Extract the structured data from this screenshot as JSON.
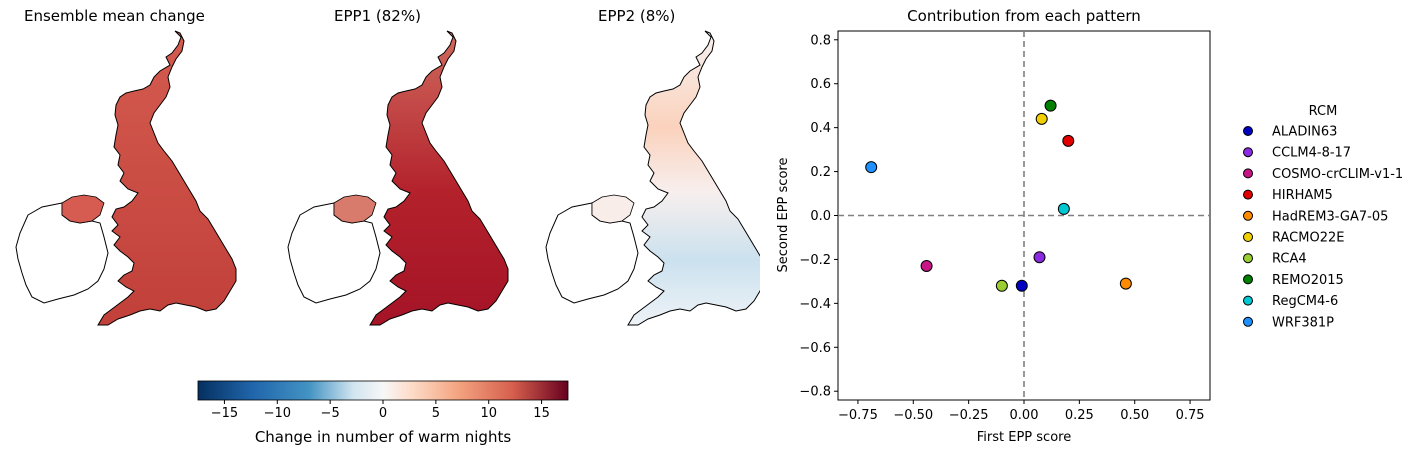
{
  "maps": {
    "panels": [
      {
        "title": "Ensemble mean change"
      },
      {
        "title": "EPP1 (82%)"
      },
      {
        "title": "EPP2 (8%)"
      }
    ],
    "colorbar": {
      "label": "Change in number of warm nights",
      "range": [
        -17.5,
        17.5
      ],
      "ticks": [
        -15,
        -10,
        -5,
        0,
        5,
        10,
        15
      ],
      "tick_labels": [
        "−15",
        "−10",
        "−5",
        "0",
        "5",
        "10",
        "15"
      ],
      "colormap": "RdBu_r"
    }
  },
  "chart_data": {
    "type": "scatter",
    "title": "Contribution from each pattern",
    "xlabel": "First EPP score",
    "ylabel": "Second EPP score",
    "xlim": [
      -0.84,
      0.84
    ],
    "ylim": [
      -0.84,
      0.84
    ],
    "x_ticks": [
      -0.75,
      -0.5,
      -0.25,
      0,
      0.25,
      0.5,
      0.75
    ],
    "x_tick_labels": [
      "−0.75",
      "−0.50",
      "−0.25",
      "0.00",
      "0.25",
      "0.50",
      "0.75"
    ],
    "y_ticks": [
      0.8,
      0.6,
      0.4,
      0.2,
      0,
      -0.2,
      -0.4,
      -0.6,
      -0.8
    ],
    "y_tick_labels": [
      "0.8",
      "0.6",
      "0.4",
      "0.2",
      "0.0",
      "−0.2",
      "−0.4",
      "−0.6",
      "−0.8"
    ],
    "reference_lines": {
      "x": 0,
      "y": 0,
      "style": "dashed",
      "color": "#808080"
    },
    "grid": false,
    "legend": {
      "title": "RCM",
      "placement": "right outside"
    },
    "series": [
      {
        "name": "ALADIN63",
        "color": "#0000c0",
        "x": -0.01,
        "y": -0.32
      },
      {
        "name": "CCLM4-8-17",
        "color": "#8a2be2",
        "x": 0.07,
        "y": -0.19
      },
      {
        "name": "COSMO-crCLIM-v1-1",
        "color": "#c71585",
        "x": -0.44,
        "y": -0.23
      },
      {
        "name": "HIRHAM5",
        "color": "#e00000",
        "x": 0.2,
        "y": 0.34
      },
      {
        "name": "HadREM3-GA7-05",
        "color": "#ff8c00",
        "x": 0.46,
        "y": -0.31
      },
      {
        "name": "RACMO22E",
        "color": "#f2d000",
        "x": 0.08,
        "y": 0.44
      },
      {
        "name": "RCA4",
        "color": "#9acd32",
        "x": -0.1,
        "y": -0.32
      },
      {
        "name": "REMO2015",
        "color": "#008000",
        "x": 0.12,
        "y": 0.5
      },
      {
        "name": "RegCM4-6",
        "color": "#00c8d2",
        "x": 0.18,
        "y": 0.03
      },
      {
        "name": "WRF381P",
        "color": "#1e90ff",
        "x": -0.69,
        "y": 0.22
      }
    ]
  }
}
